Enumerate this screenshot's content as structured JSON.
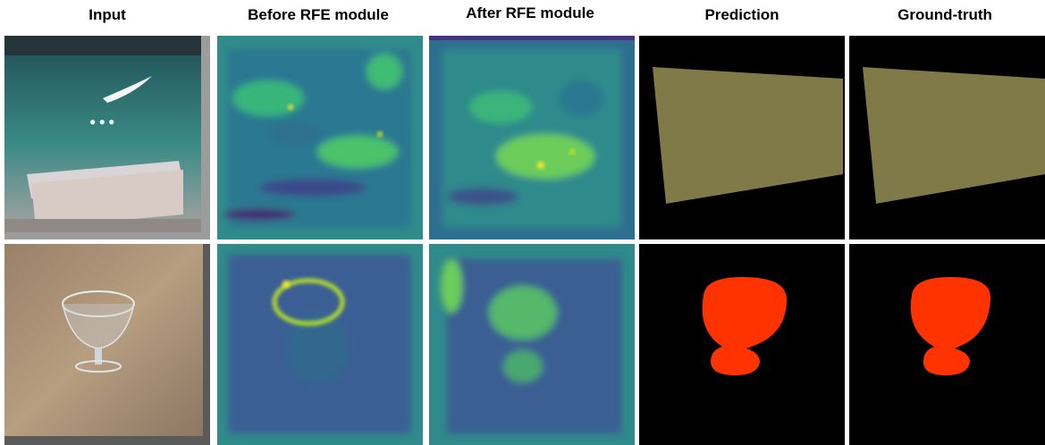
{
  "columns": [
    "Input",
    "Before RFE module",
    "After RFE module",
    "Prediction",
    "Ground-truth"
  ]
}
